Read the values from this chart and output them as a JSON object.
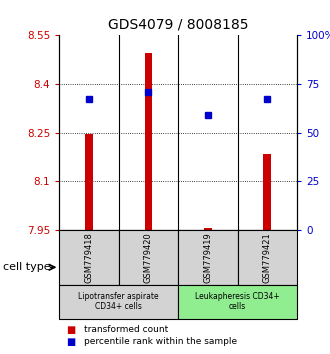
{
  "title": "GDS4079 / 8008185",
  "samples": [
    "GSM779418",
    "GSM779420",
    "GSM779419",
    "GSM779421"
  ],
  "red_values": [
    8.245,
    8.495,
    7.958,
    8.185
  ],
  "blue_values": [
    8.355,
    8.375,
    8.305,
    8.355
  ],
  "ylim_left": [
    7.95,
    8.55
  ],
  "ylim_right": [
    0,
    100
  ],
  "yticks_left": [
    7.95,
    8.1,
    8.25,
    8.4,
    8.55
  ],
  "yticks_right": [
    0,
    25,
    50,
    75,
    100
  ],
  "ytick_labels_left": [
    "7.95",
    "8.1",
    "8.25",
    "8.4",
    "8.55"
  ],
  "ytick_labels_right": [
    "0",
    "25",
    "50",
    "75",
    "100%"
  ],
  "grid_yticks": [
    8.1,
    8.25,
    8.4
  ],
  "bar_bottom": 7.95,
  "bar_color": "#cc0000",
  "dot_color": "#0000cc",
  "groups": [
    {
      "label": "Lipotransfer aspirate\nCD34+ cells",
      "samples": [
        0,
        1
      ],
      "color": "#d3d3d3"
    },
    {
      "label": "Leukapheresis CD34+\ncells",
      "samples": [
        2,
        3
      ],
      "color": "#90ee90"
    }
  ],
  "cell_type_label": "cell type",
  "legend_items": [
    {
      "color": "#cc0000",
      "label": "transformed count"
    },
    {
      "color": "#0000cc",
      "label": "percentile rank within the sample"
    }
  ]
}
